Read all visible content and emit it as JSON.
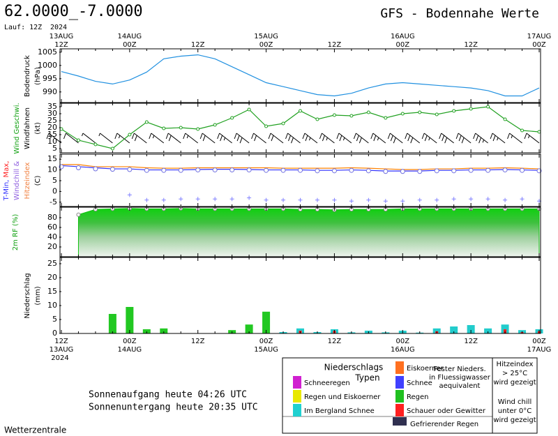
{
  "header": {
    "location": "62.0000_-7.0000",
    "run": "Lauf: 12Z",
    "year": "2024",
    "title": "GFS - Bodennahe Werte"
  },
  "time_axis": {
    "top": [
      [
        "13AUG",
        "12Z"
      ],
      null,
      null,
      null,
      [
        "14AUG",
        "00Z"
      ],
      null,
      null,
      null,
      [
        "12Z"
      ],
      null,
      null,
      null,
      [
        "15AUG",
        "00Z"
      ],
      null,
      null,
      null,
      [
        "12Z"
      ],
      null,
      null,
      null,
      [
        "16AUG",
        "00Z"
      ],
      null,
      null,
      null,
      [
        "12Z"
      ],
      null,
      null,
      null,
      [
        "17AUG",
        "00Z"
      ]
    ],
    "bottom": [
      [
        "12Z",
        "13AUG",
        "2024"
      ],
      null,
      null,
      null,
      [
        "00Z",
        "14AUG"
      ],
      null,
      null,
      null,
      [
        "12Z"
      ],
      null,
      null,
      null,
      [
        "00Z",
        "15AUG"
      ],
      null,
      null,
      null,
      [
        "12Z"
      ],
      null,
      null,
      null,
      [
        "00Z",
        "16AUG"
      ],
      null,
      null,
      null,
      [
        "12Z"
      ],
      null,
      null,
      null,
      [
        "00Z",
        "17AUG"
      ]
    ]
  },
  "chart_data": [
    {
      "type": "line",
      "ylabel": [
        [
          {
            "text": "Bodendruck",
            "color": "#000000"
          }
        ],
        [
          {
            "text": "(hPa)",
            "color": "#000000"
          }
        ]
      ],
      "ylim": [
        986,
        1006
      ],
      "yticks": [
        990,
        995,
        1000,
        1005
      ],
      "series": [
        {
          "color": "#2090e0",
          "values": [
            997.7,
            996,
            994,
            993,
            994.5,
            997.5,
            1002.5,
            1003.5,
            1004,
            1002.5,
            999.5,
            996.5,
            993.5,
            992,
            990.5,
            989,
            988.5,
            989.5,
            991.5,
            993,
            993.5,
            993,
            992.5,
            992,
            991.5,
            990.5,
            988.5,
            988.5,
            991.5
          ]
        }
      ]
    },
    {
      "type": "wind",
      "ylabel": [
        [
          {
            "text": "Wind Geschwi.",
            "color": "#10a010"
          }
        ],
        [
          {
            "text": "Windfahnen",
            "color": "#000000"
          }
        ],
        [
          {
            "text": "(kt)",
            "color": "#000000"
          }
        ]
      ],
      "ylim": [
        2,
        37
      ],
      "yticks": [
        5,
        10,
        15,
        20,
        25,
        30,
        35
      ],
      "series": [
        {
          "color": "#20a020",
          "values": [
            19,
            11,
            8,
            5,
            15,
            24,
            19.5,
            20,
            19,
            22,
            27,
            33,
            21,
            23,
            32,
            26,
            29,
            28.5,
            31,
            27,
            30,
            31,
            29.5,
            32,
            33.5,
            35,
            26,
            18,
            17
          ]
        }
      ]
    },
    {
      "type": "line",
      "ylabel": [
        [
          {
            "text": "T-Min, ",
            "color": "#3030ff"
          },
          {
            "text": "Max,",
            "color": "#ff2020"
          }
        ],
        [
          {
            "text": "Windchill &",
            "color": "#9060e0"
          }
        ],
        [
          {
            "text": "Hitzeindex",
            "color": "#f08040"
          }
        ],
        [
          {
            "text": "(C)",
            "color": "#000000"
          }
        ]
      ],
      "ylim": [
        -7,
        17
      ],
      "yticks": [
        -5,
        0,
        5,
        10,
        15
      ],
      "series": [
        {
          "color": "#ff8000",
          "marker": "none",
          "values": [
            12.5,
            12.5,
            11.5,
            11.5,
            11.5,
            11,
            10.8,
            10.8,
            11,
            11,
            11,
            11,
            11,
            10.8,
            10.8,
            10.8,
            10.8,
            11,
            10.8,
            10.5,
            10.2,
            10.2,
            10.5,
            10.5,
            10.8,
            10.8,
            11,
            10.8,
            10.5
          ]
        },
        {
          "color": "#3030ff",
          "marker": "none",
          "values": [
            12,
            11.5,
            11,
            10.5,
            10.5,
            10,
            10,
            10,
            10.2,
            10.3,
            10.3,
            10.2,
            10,
            10,
            10,
            9.8,
            9.8,
            10,
            9.8,
            9.5,
            9.5,
            9.5,
            9.8,
            9.8,
            10,
            10,
            10.2,
            10,
            9.8
          ]
        },
        {
          "color": "#7070e0",
          "marker": "circle",
          "values": [
            11.5,
            11,
            10.5,
            10.3,
            10.2,
            9.8,
            9.8,
            9.8,
            10,
            10,
            10,
            10,
            9.8,
            9.8,
            9.8,
            9.6,
            9.6,
            9.8,
            9.6,
            9.3,
            9.3,
            9.3,
            9.6,
            9.6,
            9.8,
            9.8,
            10,
            9.8,
            9.6
          ]
        },
        {
          "color": "#8080ff",
          "marker": "plus",
          "values": [
            null,
            null,
            null,
            null,
            -1.6,
            -4,
            -4,
            -3.5,
            -3.5,
            -3.5,
            -3.5,
            -3,
            -4,
            -4,
            -4,
            -4,
            -4,
            -4.5,
            -4,
            -4.5,
            -4.5,
            -4,
            -4,
            -3.5,
            -3.5,
            -3.5,
            -4,
            -3.5,
            -4.5
          ]
        }
      ]
    },
    {
      "type": "area",
      "ylabel": [
        [
          {
            "text": "2m RF (%)",
            "color": "#10a010"
          }
        ]
      ],
      "ylim": [
        0,
        100
      ],
      "yticks": [
        20,
        40,
        60,
        80
      ],
      "series": [
        {
          "color": "#10c010",
          "values": [
            null,
            86,
            97,
            98,
            99,
            98,
            98,
            99,
            98,
            98,
            98,
            98,
            98,
            98,
            97,
            97,
            96,
            97,
            97,
            97,
            98,
            98,
            98,
            98,
            98,
            98,
            98,
            98,
            98
          ]
        }
      ]
    },
    {
      "type": "bar",
      "ylabel": [
        [
          {
            "text": "Niederschlag",
            "color": "#000000"
          }
        ],
        [
          {
            "text": "(mm)",
            "color": "#000000"
          }
        ]
      ],
      "ylim": [
        0,
        27
      ],
      "yticks": [
        0,
        5,
        10,
        15,
        20,
        25
      ],
      "series": [
        {
          "color": "#22c822",
          "values": [
            null,
            null,
            null,
            7,
            9.5,
            1.5,
            1.8,
            null,
            null,
            null,
            1.2,
            3.2,
            7.8,
            null,
            null,
            null,
            null,
            null,
            null,
            null,
            null,
            null,
            null,
            null,
            null,
            null,
            null,
            null,
            null
          ]
        },
        {
          "color": "#22cccc",
          "values": [
            null,
            null,
            null,
            null,
            null,
            null,
            null,
            null,
            null,
            null,
            null,
            null,
            null,
            0.5,
            1.8,
            0.5,
            1.5,
            0.4,
            1,
            0.4,
            1,
            0.3,
            1.8,
            2.5,
            3,
            1.8,
            3.2,
            1.2,
            1.5
          ]
        },
        {
          "color": "#ff2020",
          "values": [
            null,
            null,
            null,
            null,
            null,
            null,
            null,
            null,
            null,
            null,
            null,
            null,
            null,
            null,
            1,
            null,
            1,
            null,
            null,
            null,
            null,
            null,
            0.8,
            null,
            null,
            null,
            1.5,
            0.5,
            0.8
          ]
        }
      ]
    }
  ],
  "legend": {
    "title": [
      "Niederschlags",
      "Typen"
    ],
    "items": [
      {
        "label": "Schneeregen",
        "color": "#d020d0"
      },
      {
        "label": "Regen und Eiskoerner",
        "color": "#e8e800"
      },
      {
        "label": "Im Bergland Schnee",
        "color": "#20d0d0"
      },
      {
        "label": "Eiskoerner",
        "color": "#ff7020"
      },
      {
        "label": "Schnee",
        "color": "#4040ff"
      },
      {
        "label": "Regen",
        "color": "#20c020"
      },
      {
        "label": "Schauer oder Gewitter",
        "color": "#ff2020"
      },
      {
        "label": "Gefrierender Regen",
        "color": "#303050"
      }
    ],
    "note": [
      "Fester Nieders.",
      "in Fluessigwasser",
      "aequivalent"
    ]
  },
  "side": {
    "heat": [
      "Hitzeindex",
      "> 25°C",
      "wird gezeigt"
    ],
    "chill": [
      "Wind chill",
      "unter 0°C",
      "wird gezeigt"
    ]
  },
  "sun": [
    "Sonnenaufgang heute 04:26 UTC",
    "Sonnenuntergang heute 20:35 UTC"
  ],
  "footer": "Wetterzentrale"
}
